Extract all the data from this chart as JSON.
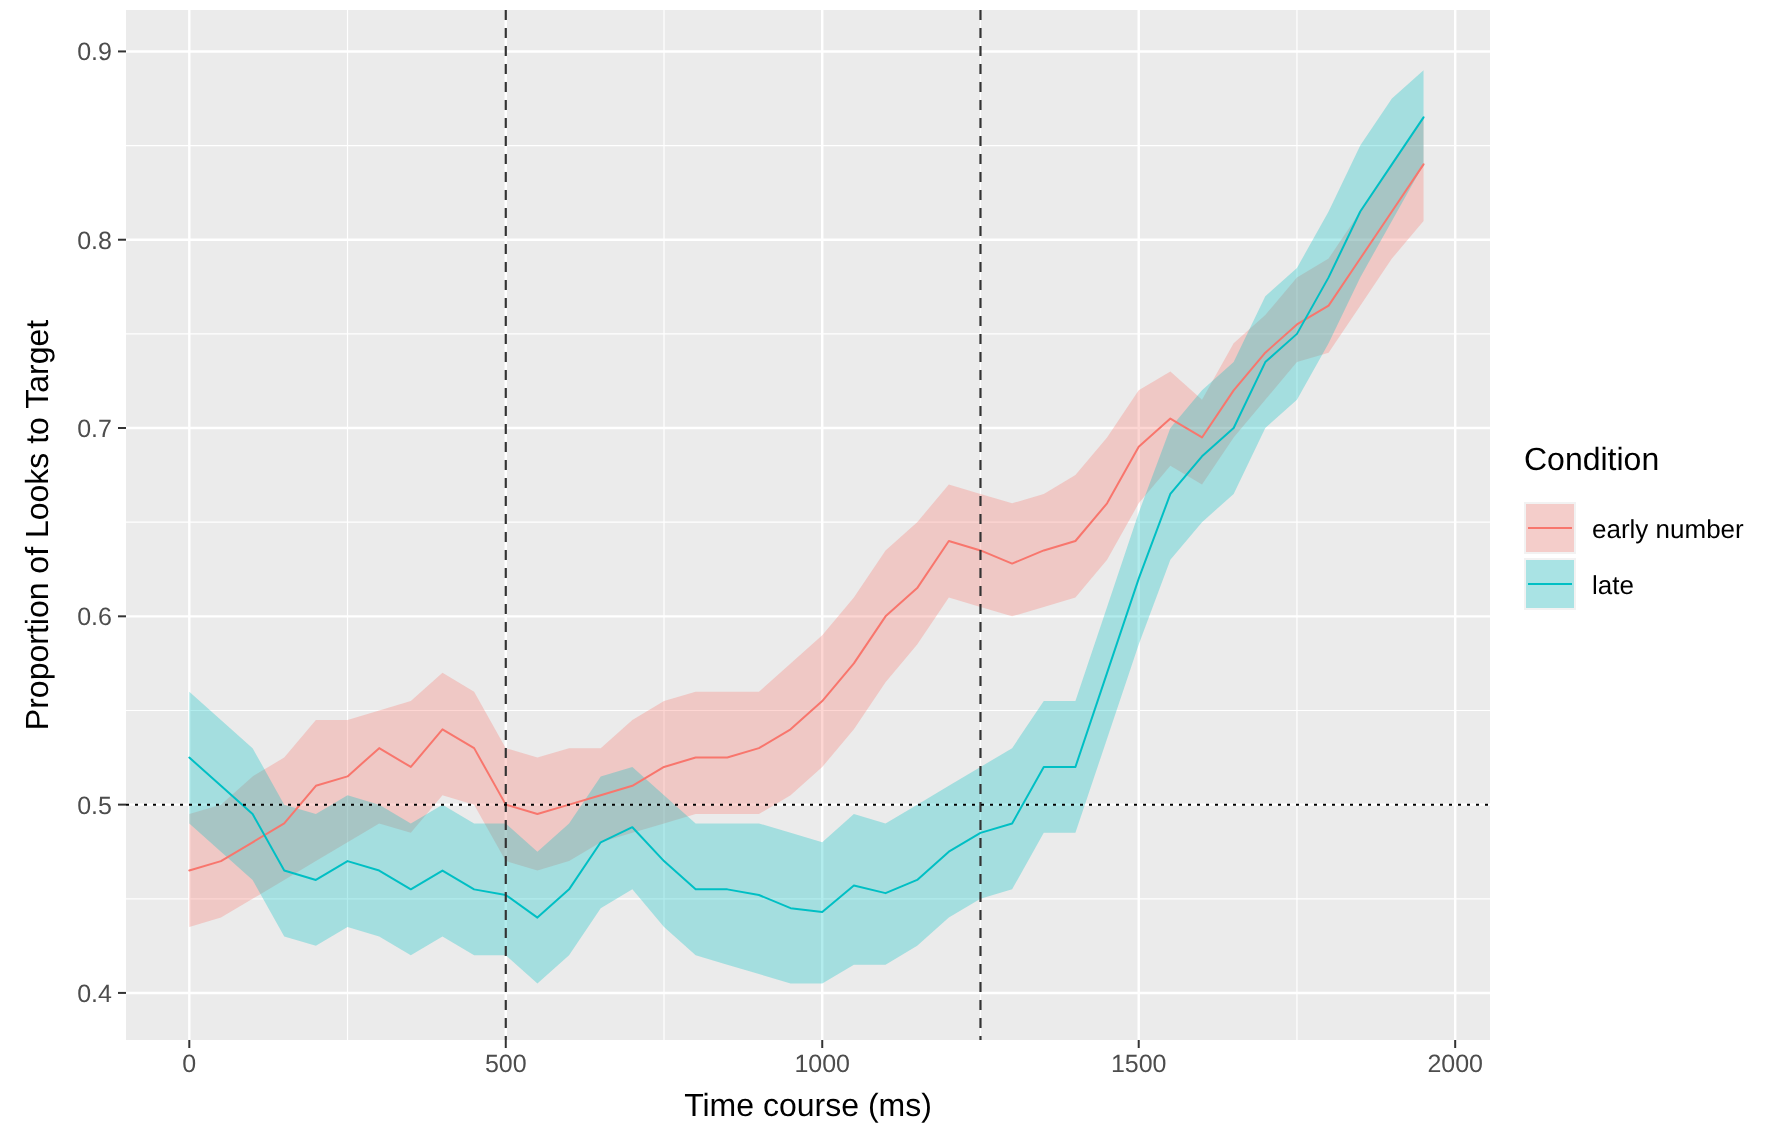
{
  "chart_data": {
    "type": "line",
    "xlabel": "Time course (ms)",
    "ylabel": "Proportion of Looks to Target",
    "legend_title": "Condition",
    "x": [
      0,
      50,
      100,
      150,
      200,
      250,
      300,
      350,
      400,
      450,
      500,
      550,
      600,
      650,
      700,
      750,
      800,
      850,
      900,
      950,
      1000,
      1050,
      1100,
      1150,
      1200,
      1250,
      1300,
      1350,
      1400,
      1450,
      1500,
      1550,
      1600,
      1650,
      1700,
      1750,
      1800,
      1850,
      1900,
      1950
    ],
    "series": [
      {
        "name": "early number",
        "color": "#f8766d",
        "values": [
          0.465,
          0.47,
          0.48,
          0.49,
          0.51,
          0.515,
          0.53,
          0.52,
          0.54,
          0.53,
          0.5,
          0.495,
          0.5,
          0.505,
          0.51,
          0.52,
          0.525,
          0.525,
          0.53,
          0.54,
          0.555,
          0.575,
          0.6,
          0.615,
          0.64,
          0.635,
          0.628,
          0.635,
          0.64,
          0.66,
          0.69,
          0.705,
          0.695,
          0.72,
          0.74,
          0.755,
          0.765,
          0.79,
          0.815,
          0.84
        ],
        "lower": [
          0.435,
          0.44,
          0.45,
          0.46,
          0.47,
          0.48,
          0.49,
          0.485,
          0.505,
          0.5,
          0.47,
          0.465,
          0.47,
          0.48,
          0.485,
          0.49,
          0.495,
          0.495,
          0.495,
          0.505,
          0.52,
          0.54,
          0.565,
          0.585,
          0.61,
          0.605,
          0.6,
          0.605,
          0.61,
          0.63,
          0.66,
          0.68,
          0.67,
          0.695,
          0.715,
          0.735,
          0.74,
          0.765,
          0.79,
          0.81
        ],
        "upper": [
          0.495,
          0.5,
          0.515,
          0.525,
          0.545,
          0.545,
          0.55,
          0.555,
          0.57,
          0.56,
          0.53,
          0.525,
          0.53,
          0.53,
          0.545,
          0.555,
          0.56,
          0.56,
          0.56,
          0.575,
          0.59,
          0.61,
          0.635,
          0.65,
          0.67,
          0.665,
          0.66,
          0.665,
          0.675,
          0.695,
          0.72,
          0.73,
          0.715,
          0.745,
          0.76,
          0.78,
          0.79,
          0.815,
          0.84,
          0.865
        ]
      },
      {
        "name": "late",
        "color": "#00bfc4",
        "values": [
          0.525,
          0.51,
          0.495,
          0.465,
          0.46,
          0.47,
          0.465,
          0.455,
          0.465,
          0.455,
          0.452,
          0.44,
          0.455,
          0.48,
          0.488,
          0.47,
          0.455,
          0.455,
          0.452,
          0.445,
          0.443,
          0.457,
          0.453,
          0.46,
          0.475,
          0.485,
          0.49,
          0.52,
          0.52,
          0.57,
          0.62,
          0.665,
          0.685,
          0.7,
          0.735,
          0.75,
          0.78,
          0.815,
          0.84,
          0.865
        ],
        "lower": [
          0.49,
          0.475,
          0.46,
          0.43,
          0.425,
          0.435,
          0.43,
          0.42,
          0.43,
          0.42,
          0.42,
          0.405,
          0.42,
          0.445,
          0.455,
          0.435,
          0.42,
          0.415,
          0.41,
          0.405,
          0.405,
          0.415,
          0.415,
          0.425,
          0.44,
          0.45,
          0.455,
          0.485,
          0.485,
          0.535,
          0.585,
          0.63,
          0.65,
          0.665,
          0.7,
          0.715,
          0.745,
          0.78,
          0.81,
          0.84
        ],
        "upper": [
          0.56,
          0.545,
          0.53,
          0.5,
          0.495,
          0.505,
          0.5,
          0.49,
          0.5,
          0.49,
          0.49,
          0.475,
          0.49,
          0.515,
          0.52,
          0.505,
          0.49,
          0.49,
          0.49,
          0.485,
          0.48,
          0.495,
          0.49,
          0.5,
          0.51,
          0.52,
          0.53,
          0.555,
          0.555,
          0.605,
          0.655,
          0.7,
          0.72,
          0.735,
          0.77,
          0.785,
          0.815,
          0.85,
          0.875,
          0.89
        ]
      }
    ],
    "xlim": [
      -100,
      2055
    ],
    "xticks": [
      0,
      500,
      1000,
      1500,
      2000
    ],
    "ylim": [
      0.375,
      0.922
    ],
    "yticks": [
      {
        "value": 0.4,
        "label": "0.4"
      },
      {
        "value": 0.5,
        "label": "0.5"
      },
      {
        "value": 0.6,
        "label": "0.6"
      },
      {
        "value": 0.7,
        "label": "0.7"
      },
      {
        "value": 0.8,
        "label": "0.8"
      },
      {
        "value": 0.9,
        "label": "0.9"
      }
    ],
    "ref_lines": [
      {
        "axis": "x",
        "value": 500,
        "line_style": "dashed",
        "color": "#333333"
      },
      {
        "axis": "x",
        "value": 1250,
        "line_style": "dashed",
        "color": "#333333"
      },
      {
        "axis": "y",
        "value": 0.5,
        "line_style": "dotted",
        "color": "#000000"
      }
    ],
    "grid": true,
    "legend": "right",
    "marker": "none",
    "line_style": "solid"
  }
}
